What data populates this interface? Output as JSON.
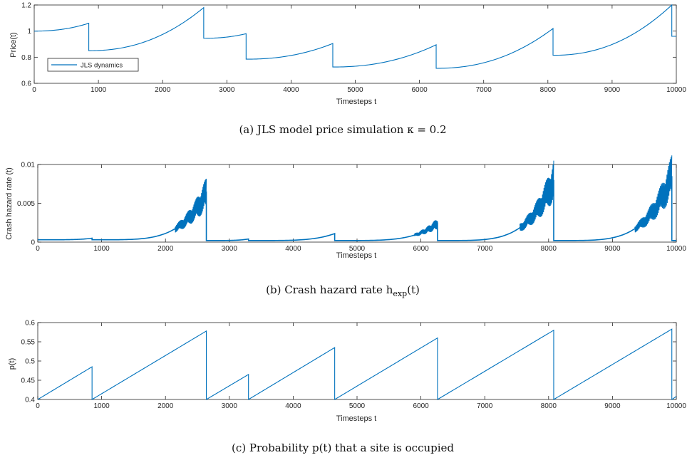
{
  "chart_data": [
    {
      "type": "line",
      "xlabel": "Timesteps t",
      "ylabel": "Price(t)",
      "xlim": [
        0,
        10000
      ],
      "ylim": [
        0.6,
        1.2
      ],
      "xticks": [
        "0",
        "1000",
        "2000",
        "3000",
        "4000",
        "5000",
        "6000",
        "7000",
        "8000",
        "9000",
        "10000"
      ],
      "yticks": [
        "0.6",
        "0.8",
        "1",
        "1.2"
      ],
      "legend": {
        "entries": [
          "JLS dynamics"
        ],
        "placement": "lower-left"
      },
      "color": "#0072BD",
      "grid": false,
      "caption": "(a) JLS model price simulation κ = 0.2",
      "x": [
        0,
        850,
        850,
        2640,
        2640,
        3300,
        3300,
        4650,
        4650,
        6260,
        6260,
        8080,
        8080,
        9930,
        9930,
        10000
      ],
      "y": [
        1.0,
        1.06,
        0.85,
        1.18,
        0.945,
        0.98,
        0.785,
        0.905,
        0.725,
        0.895,
        0.715,
        1.02,
        0.815,
        1.2,
        0.96,
        0.96
      ]
    },
    {
      "type": "line",
      "xlabel": "Timesteps t",
      "ylabel": "Crash hazard rate (t)",
      "xlim": [
        0,
        10000
      ],
      "ylim": [
        0,
        0.01
      ],
      "xticks": [
        "0",
        "1000",
        "2000",
        "3000",
        "4000",
        "5000",
        "6000",
        "7000",
        "8000",
        "9000",
        "10000"
      ],
      "yticks": [
        "0",
        "0.005",
        "0.01"
      ],
      "color": "#0072BD",
      "grid": false,
      "caption": "(b) Crash hazard rate h",
      "caption_sub": "exp",
      "caption_suffix": "(t)",
      "x": [
        0,
        850,
        850,
        2640,
        2640,
        3300,
        3300,
        4650,
        4650,
        6260,
        6260,
        8080,
        8080,
        9930,
        9930,
        10000
      ],
      "y": [
        0.0003,
        0.0005,
        0.0003,
        0.0063,
        0.0002,
        0.0004,
        0.0002,
        0.0011,
        0.0002,
        0.0024,
        0.0002,
        0.008,
        0.0002,
        0.0085,
        0.0002,
        0.0002
      ]
    },
    {
      "type": "line",
      "xlabel": "Timesteps t",
      "ylabel": "p(t)",
      "xlim": [
        0,
        10000
      ],
      "ylim": [
        0.4,
        0.6
      ],
      "xticks": [
        "0",
        "1000",
        "2000",
        "3000",
        "4000",
        "5000",
        "6000",
        "7000",
        "8000",
        "9000",
        "10000"
      ],
      "yticks": [
        "0.4",
        "0.45",
        "0.5",
        "0.55",
        "0.6"
      ],
      "color": "#0072BD",
      "grid": false,
      "caption": "(c) Probability p(t) that a site is occupied",
      "x": [
        0,
        850,
        850,
        2640,
        2640,
        3300,
        3300,
        4650,
        4650,
        6260,
        6260,
        8080,
        8080,
        9930,
        9930,
        10000
      ],
      "y": [
        0.4,
        0.485,
        0.4,
        0.578,
        0.4,
        0.465,
        0.4,
        0.535,
        0.4,
        0.56,
        0.4,
        0.58,
        0.4,
        0.583,
        0.4,
        0.408
      ]
    }
  ]
}
